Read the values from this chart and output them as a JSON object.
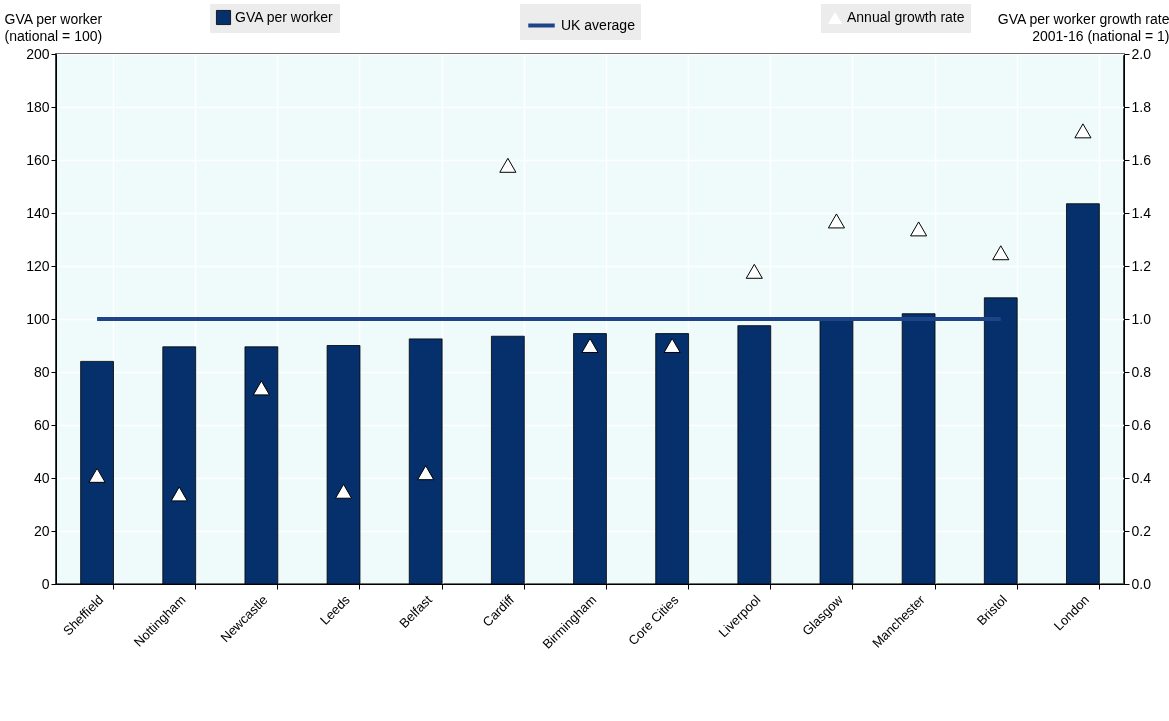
{
  "chart_data": {
    "type": "bar",
    "categories": [
      "Sheffield",
      "Nottingham",
      "Newcastle",
      "Leeds",
      "Belfast",
      "Cardiff",
      "Birmingham",
      "Core Cities",
      "Liverpool",
      "Glasgow",
      "Manchester",
      "Bristol",
      "London"
    ],
    "ylabel": "GVA per worker\n(national = 100)",
    "y2label": "GVA per worker growth rate\n2001-16 (national = 1)",
    "series": [
      {
        "name": "GVA per worker",
        "color": "#06306b",
        "values": [
          84,
          89.5,
          89.5,
          90,
          92.5,
          93.5,
          94.5,
          94.5,
          97.5,
          100,
          102,
          108,
          143.5
        ]
      },
      {
        "name": "UK average",
        "type": "line",
        "color": "#1d4486",
        "values": [
          100,
          100,
          100,
          100,
          100,
          100,
          100,
          100,
          100,
          100,
          100,
          100,
          null
        ]
      },
      {
        "name": "Annual growth rate",
        "type": "scatter",
        "axis": "y2",
        "marker": "triangle",
        "color": "#000000",
        "values": [
          0.41,
          0.34,
          0.74,
          0.35,
          0.42,
          1.58,
          0.9,
          0.9,
          1.18,
          1.37,
          1.34,
          1.25,
          1.71
        ]
      }
    ],
    "ylim": [
      0,
      200
    ],
    "yticks": [
      0,
      20,
      40,
      60,
      80,
      100,
      120,
      140,
      160,
      180,
      200
    ],
    "y2lim": [
      0,
      2
    ],
    "y2ticks": [
      {
        "value": 0,
        "label": "0.0"
      },
      {
        "value": 0.2,
        "label": "0.2"
      },
      {
        "value": 0.4,
        "label": "0.4"
      },
      {
        "value": 0.6,
        "label": "0.6"
      },
      {
        "value": 0.8,
        "label": "0.8"
      },
      {
        "value": 1,
        "label": "1.0"
      },
      {
        "value": 1.2,
        "label": "1.2"
      },
      {
        "value": 1.4,
        "label": "1.4"
      },
      {
        "value": 1.6,
        "label": "1.6"
      },
      {
        "value": 1.8,
        "label": "1.8"
      },
      {
        "value": 2,
        "label": "2.0"
      }
    ],
    "grid": true,
    "legend": "top"
  }
}
